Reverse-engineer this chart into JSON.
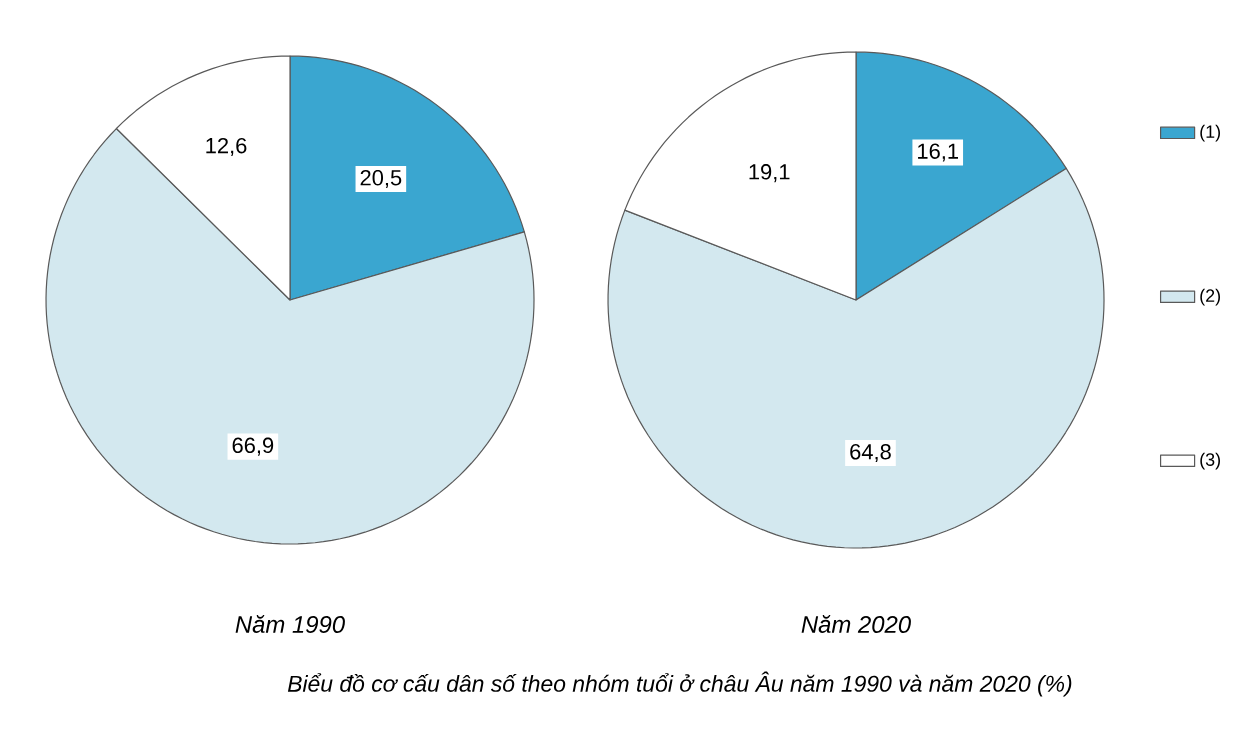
{
  "chart_data": [
    {
      "type": "pie",
      "title": "Năm 1990",
      "categories": [
        null,
        null,
        null
      ],
      "values": [
        20.5,
        66.9,
        12.6
      ],
      "value_labels": [
        "20,5",
        "66,9",
        "12,6"
      ],
      "colors": [
        "#3aa6d0",
        "#d3e8ef",
        "#ffffff"
      ]
    },
    {
      "type": "pie",
      "title": "Năm 2020",
      "categories": [
        "(1)",
        "(2)",
        "(3)"
      ],
      "values": [
        16.1,
        64.8,
        19.1
      ],
      "value_labels": [
        "16,1",
        "64,8",
        "19,1"
      ],
      "colors": [
        "#3aa6d0",
        "#d3e8ef",
        "#ffffff"
      ],
      "legend": "right",
      "annotations": [
        "Biểu đồ cơ cấu dân số theo nhóm tuổi ở châu Âu năm 1990 và năm 2020 (%)"
      ]
    }
  ]
}
